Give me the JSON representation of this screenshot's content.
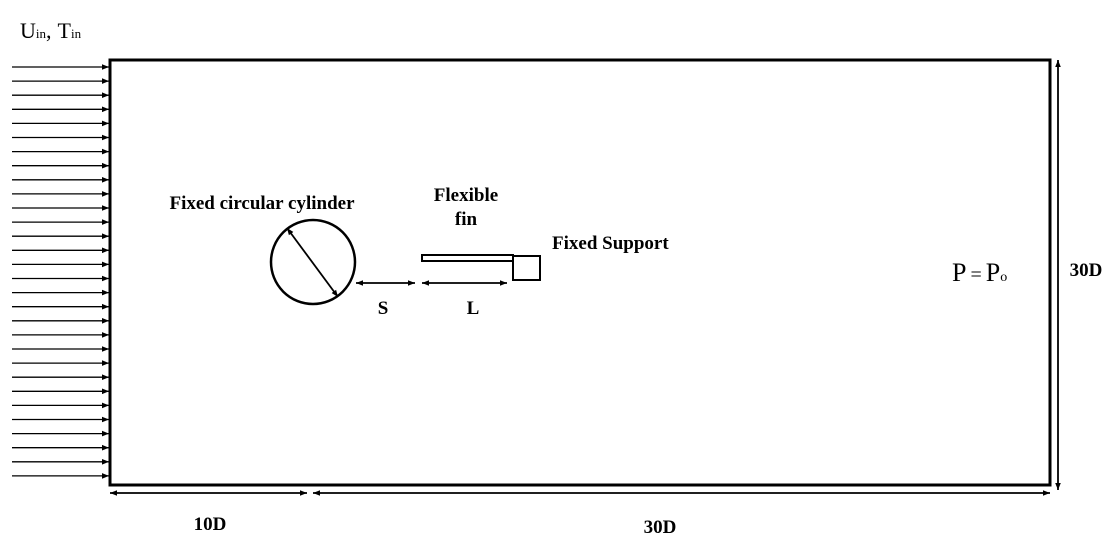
{
  "inlet": {
    "u": "U",
    "u_sub": "in",
    "separator": ",",
    "t": "T",
    "t_sub": "in"
  },
  "cylinder_label": "Fixed circular cylinder",
  "fin_label": [
    "Flexible",
    "fin"
  ],
  "support_label": "Fixed Support",
  "outlet": {
    "p": "P",
    "equals": "=",
    "p0": "P",
    "p0_sub": "o"
  },
  "dimensions": {
    "gap": "S",
    "fin_length": "L",
    "height": "30D",
    "upstream": "10D",
    "downstream": "30D"
  }
}
